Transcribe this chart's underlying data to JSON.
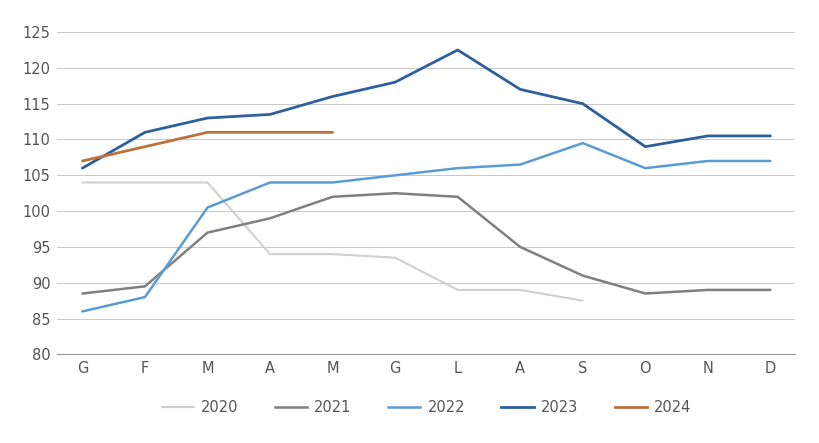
{
  "months": [
    "G",
    "F",
    "M",
    "A",
    "M",
    "G",
    "L",
    "A",
    "S",
    "O",
    "N",
    "D"
  ],
  "series": {
    "2020": [
      104,
      104,
      104,
      94,
      94,
      93.5,
      89,
      89,
      87.5,
      null,
      null,
      null
    ],
    "2021": [
      88.5,
      89.5,
      97,
      99,
      102,
      102.5,
      102,
      95,
      91,
      88.5,
      89,
      89
    ],
    "2022": [
      86,
      88,
      100.5,
      104,
      104,
      105,
      106,
      106.5,
      109.5,
      106,
      107,
      107
    ],
    "2023": [
      106,
      111,
      113,
      113.5,
      116,
      118,
      122.5,
      117,
      115,
      109,
      110.5,
      110.5
    ],
    "2024": [
      107,
      109,
      111,
      111,
      111,
      null,
      null,
      null,
      null,
      null,
      null,
      null
    ]
  },
  "colors": {
    "2020": "#d0d0d0",
    "2021": "#808080",
    "2022": "#5b9bd5",
    "2023": "#2e5f9e",
    "2024": "#c0703a"
  },
  "linewidths": {
    "2020": 1.5,
    "2021": 1.8,
    "2022": 1.8,
    "2023": 2.0,
    "2024": 2.0
  },
  "ylim": [
    80,
    127
  ],
  "yticks": [
    80,
    85,
    90,
    95,
    100,
    105,
    110,
    115,
    120,
    125
  ],
  "background_color": "#ffffff",
  "grid_color": "#c8c8c8"
}
